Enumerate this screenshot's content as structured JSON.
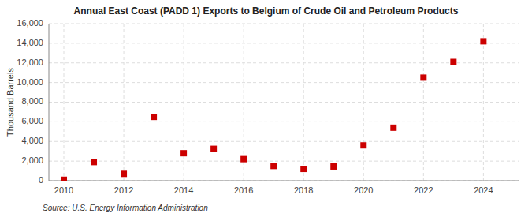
{
  "chart_data": {
    "type": "scatter",
    "title": "Annual East Coast (PADD 1) Exports to Belgium of Crude Oil and Petroleum Products",
    "y_label": "Thousand Barrels",
    "annotations": [
      "Source: U.S. Energy Information Administration"
    ],
    "x": [
      2010,
      2011,
      2012,
      2013,
      2014,
      2015,
      2016,
      2017,
      2018,
      2019,
      2020,
      2021,
      2022,
      2023,
      2024
    ],
    "values": [
      100,
      1900,
      700,
      6500,
      2800,
      3250,
      2200,
      1500,
      1200,
      1450,
      3600,
      5400,
      10500,
      12100,
      14200
    ],
    "color": "#cc0000",
    "marker": "square",
    "xlim": [
      2009.5,
      2025.2
    ],
    "xticks": [
      2010,
      2012,
      2014,
      2016,
      2018,
      2020,
      2022,
      2024
    ],
    "ylim": [
      0,
      16000
    ],
    "yticks": [
      0,
      {
        "value": 2000,
        "label": "2,000"
      },
      {
        "value": 4000,
        "label": "4,000"
      },
      {
        "value": 6000,
        "label": "6,000"
      },
      {
        "value": 8000,
        "label": "8,000"
      },
      {
        "value": 10000,
        "label": "10,000"
      },
      {
        "value": 12000,
        "label": "12,000"
      },
      {
        "value": 14000,
        "label": "14,000"
      },
      {
        "value": 16000,
        "label": "16,000"
      }
    ],
    "grid": true
  }
}
